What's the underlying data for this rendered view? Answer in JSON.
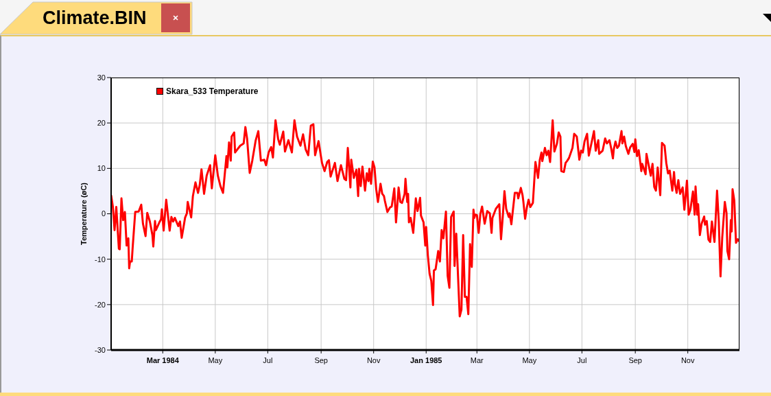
{
  "chart_data": {
    "type": "line",
    "title": "Climate.BIN",
    "ylabel": "Temperature (øC)",
    "xlim": [
      "1984-01-01",
      "1985-12-31"
    ],
    "xticks": [
      {
        "value": "1984-03-01",
        "label": "Mar 1984"
      },
      {
        "value": "1984-05-01",
        "label": "May"
      },
      {
        "value": "1984-07-01",
        "label": "Jul"
      },
      {
        "value": "1984-09-01",
        "label": "Sep"
      },
      {
        "value": "1984-11-01",
        "label": "Nov"
      },
      {
        "value": "1985-01-01",
        "label": "Jan 1985"
      },
      {
        "value": "1985-03-01",
        "label": "Mar"
      },
      {
        "value": "1985-05-01",
        "label": "May"
      },
      {
        "value": "1985-07-01",
        "label": "Jul"
      },
      {
        "value": "1985-09-01",
        "label": "Sep"
      },
      {
        "value": "1985-11-01",
        "label": "Nov"
      }
    ],
    "ylim": [
      -30,
      30
    ],
    "yticks": [
      -30,
      -20,
      -10,
      0,
      10,
      20,
      30
    ],
    "grid": true,
    "legend": "top left",
    "marker": "none",
    "line_style": "solid",
    "x": [
      "1984-01-01",
      "1984-01-03",
      "1984-01-05",
      "1984-01-07",
      "1984-01-10",
      "1984-01-11",
      "1984-01-13",
      "1984-01-15",
      "1984-01-17",
      "1984-01-19",
      "1984-01-21",
      "1984-01-22",
      "1984-01-23",
      "1984-01-25",
      "1984-01-26",
      "1984-01-29",
      "1984-02-02",
      "1984-02-05",
      "1984-02-07",
      "1984-02-10",
      "1984-02-12",
      "1984-02-15",
      "1984-02-18",
      "1984-02-19",
      "1984-02-21",
      "1984-02-22",
      "1984-02-26",
      "1984-02-28",
      "1984-02-29",
      "1984-03-02",
      "1984-03-05",
      "1984-03-09",
      "1984-03-11",
      "1984-03-13",
      "1984-03-15",
      "1984-03-19",
      "1984-03-21",
      "1984-03-23",
      "1984-03-27",
      "1984-03-29",
      "1984-03-30",
      "1984-04-03",
      "1984-04-05",
      "1984-04-08",
      "1984-04-11",
      "1984-04-13",
      "1984-04-15",
      "1984-04-18",
      "1984-04-21",
      "1984-04-25",
      "1984-04-27",
      "1984-05-01",
      "1984-05-04",
      "1984-05-07",
      "1984-05-10",
      "1984-05-14",
      "1984-05-15",
      "1984-05-17",
      "1984-05-19",
      "1984-05-20",
      "1984-05-23",
      "1984-05-24",
      "1984-05-30",
      "1984-06-03",
      "1984-06-05",
      "1984-06-07",
      "1984-06-10",
      "1984-06-13",
      "1984-06-17",
      "1984-06-20",
      "1984-06-23",
      "1984-06-27",
      "1984-06-29",
      "1984-07-02",
      "1984-07-05",
      "1984-07-07",
      "1984-07-10",
      "1984-07-13",
      "1984-07-15",
      "1984-07-19",
      "1984-07-21",
      "1984-07-25",
      "1984-07-29",
      "1984-08-01",
      "1984-08-04",
      "1984-08-08",
      "1984-08-11",
      "1984-08-14",
      "1984-08-17",
      "1984-08-20",
      "1984-08-23",
      "1984-08-25",
      "1984-08-29",
      "1984-09-02",
      "1984-09-05",
      "1984-09-08",
      "1984-09-10",
      "1984-09-12",
      "1984-09-17",
      "1984-09-20",
      "1984-09-24",
      "1984-09-28",
      "1984-09-30",
      "1984-10-02",
      "1984-10-05",
      "1984-10-06",
      "1984-10-09",
      "1984-10-12",
      "1984-10-14",
      "1984-10-15",
      "1984-10-17",
      "1984-10-19",
      "1984-10-22",
      "1984-10-24",
      "1984-10-26",
      "1984-10-27",
      "1984-10-29",
      "1984-10-31",
      "1984-11-02",
      "1984-11-04",
      "1984-11-06",
      "1984-11-09",
      "1984-11-11",
      "1984-11-13",
      "1984-11-14",
      "1984-11-17",
      "1984-11-20",
      "1984-11-22",
      "1984-11-25",
      "1984-11-27",
      "1984-11-30",
      "1984-12-02",
      "1984-12-04",
      "1984-12-07",
      "1984-12-08",
      "1984-12-10",
      "1984-12-11",
      "1984-12-12",
      "1984-12-14",
      "1984-12-17",
      "1984-12-20",
      "1984-12-22",
      "1984-12-25",
      "1984-12-26",
      "1984-12-29",
      "1984-12-31",
      "1985-01-01",
      "1985-01-03",
      "1985-01-05",
      "1985-01-07",
      "1985-01-09",
      "1985-01-10",
      "1985-01-12",
      "1985-01-15",
      "1985-01-17",
      "1985-01-19",
      "1985-01-21",
      "1985-01-24",
      "1985-01-26",
      "1985-01-28",
      "1985-01-30",
      "1985-02-02",
      "1985-02-03",
      "1985-02-05",
      "1985-02-09",
      "1985-02-11",
      "1985-02-13",
      "1985-02-15",
      "1985-02-17",
      "1985-02-19",
      "1985-02-21",
      "1985-02-23",
      "1985-02-25",
      "1985-02-26",
      "1985-02-27",
      "1985-03-01",
      "1985-03-03",
      "1985-03-05",
      "1985-03-07",
      "1985-03-10",
      "1985-03-13",
      "1985-03-16",
      "1985-03-18",
      "1985-03-19",
      "1985-03-23",
      "1985-03-27",
      "1985-03-29",
      "1985-03-31",
      "1985-04-02",
      "1985-04-04",
      "1985-04-07",
      "1985-04-08",
      "1985-04-10",
      "1985-04-14",
      "1985-04-17",
      "1985-04-18",
      "1985-04-21",
      "1985-04-23",
      "1985-04-24",
      "1985-04-26",
      "1985-04-28",
      "1985-04-30",
      "1985-05-02",
      "1985-05-05",
      "1985-05-08",
      "1985-05-11",
      "1985-05-13",
      "1985-05-15",
      "1985-05-16",
      "1985-05-19",
      "1985-05-21",
      "1985-05-23",
      "1985-05-25",
      "1985-05-28",
      "1985-05-30",
      "1985-06-02",
      "1985-06-04",
      "1985-06-06",
      "1985-06-07",
      "1985-06-10",
      "1985-06-12",
      "1985-06-14",
      "1985-06-16",
      "1985-06-20",
      "1985-06-22",
      "1985-06-25",
      "1985-06-28",
      "1985-06-30",
      "1985-07-02",
      "1985-07-04",
      "1985-07-07",
      "1985-07-09",
      "1985-07-12",
      "1985-07-15",
      "1985-07-17",
      "1985-07-20",
      "1985-07-21",
      "1985-07-25",
      "1985-07-28",
      "1985-07-30",
      "1985-08-02",
      "1985-08-04",
      "1985-08-06",
      "1985-08-07",
      "1985-08-09",
      "1985-08-11",
      "1985-08-13",
      "1985-08-16",
      "1985-08-17",
      "1985-08-19",
      "1985-08-21",
      "1985-08-24",
      "1985-08-26",
      "1985-08-29",
      "1985-08-31",
      "1985-09-01",
      "1985-09-03",
      "1985-09-05",
      "1985-09-08",
      "1985-09-09",
      "1985-09-11",
      "1985-09-13",
      "1985-09-14",
      "1985-09-16",
      "1985-09-19",
      "1985-09-21",
      "1985-09-23",
      "1985-09-25",
      "1985-09-27",
      "1985-09-30",
      "1985-10-02",
      "1985-10-05",
      "1985-10-07",
      "1985-10-09",
      "1985-10-11",
      "1985-10-14",
      "1985-10-16",
      "1985-10-17",
      "1985-10-19",
      "1985-10-21",
      "1985-10-23",
      "1985-10-26",
      "1985-10-28",
      "1985-10-31",
      "1985-11-02",
      "1985-11-04",
      "1985-11-07",
      "1985-11-09",
      "1985-11-10",
      "1985-11-12",
      "1985-11-13",
      "1985-11-15",
      "1985-11-17",
      "1985-11-20",
      "1985-11-21",
      "1985-11-23",
      "1985-11-25",
      "1985-11-27",
      "1985-11-29",
      "1985-12-02",
      "1985-12-05",
      "1985-12-07",
      "1985-12-09",
      "1985-12-11",
      "1985-12-14",
      "1985-12-16",
      "1985-12-17",
      "1985-12-19",
      "1985-12-21",
      "1985-12-22",
      "1985-12-23",
      "1985-12-25",
      "1985-12-27",
      "1985-12-29",
      "1985-12-31"
    ],
    "series": [
      {
        "name": "Skara_533 Temperature",
        "color": "#ff0000",
        "values": [
          4.1,
          1.6,
          -3.6,
          1.5,
          -7.7,
          -7.8,
          3.4,
          -1.4,
          0.4,
          -7.0,
          -5.4,
          -12.0,
          -10.5,
          -10.5,
          -7.5,
          0.4,
          0.5,
          2.0,
          -2.2,
          -4.9,
          0.2,
          -1.7,
          -4.7,
          -7.2,
          -1.6,
          -3.6,
          -1.9,
          -1.2,
          1.0,
          -3.7,
          3.1,
          -3.7,
          -0.7,
          -1.7,
          -0.9,
          -2.7,
          -1.7,
          -5.3,
          -0.8,
          0.1,
          2.6,
          -0.8,
          3.9,
          6.9,
          4.6,
          6.4,
          9.8,
          4.4,
          8.4,
          10.7,
          5.6,
          12.9,
          8.4,
          6.1,
          4.6,
          12.7,
          10.2,
          15.7,
          11.7,
          17.0,
          17.9,
          13.5,
          15.0,
          15.5,
          19.1,
          16.5,
          9.0,
          11.7,
          16.2,
          18.2,
          11.7,
          11.9,
          10.7,
          13.5,
          14.7,
          12.4,
          20.6,
          16.5,
          15.2,
          18.1,
          13.7,
          16.2,
          13.5,
          20.6,
          17.0,
          15.0,
          17.5,
          14.2,
          12.9,
          19.4,
          19.7,
          12.9,
          16.0,
          11.2,
          9.4,
          11.4,
          11.8,
          8.2,
          11.2,
          7.2,
          10.7,
          7.7,
          7.4,
          14.5,
          5.8,
          11.9,
          7.9,
          9.7,
          3.9,
          9.9,
          6.1,
          10.4,
          5.1,
          8.9,
          7.2,
          9.9,
          6.6,
          11.5,
          10.2,
          5.4,
          2.6,
          6.6,
          4.4,
          3.9,
          2.9,
          0.4,
          1.4,
          1.6,
          5.6,
          -1.9,
          5.8,
          2.6,
          2.4,
          4.4,
          7.7,
          2.6,
          4.4,
          -1.9,
          -0.9,
          -4.2,
          3.4,
          0.6,
          3.5,
          -0.4,
          -1.9,
          -7.0,
          -2.9,
          -9.2,
          -13.2,
          -14.8,
          -20.1,
          -12.5,
          -12.2,
          -8.2,
          -10.5,
          -3.6,
          -5.4,
          0.5,
          -13.7,
          -16.3,
          -0.7,
          0.5,
          -11.5,
          -4.4,
          -22.6,
          -21.1,
          -4.7,
          -18.3,
          -18.3,
          -22.1,
          -6.7,
          -11.7,
          0.9,
          -0.9,
          -0.2,
          -0.3,
          -4.2,
          0.0,
          1.6,
          -2.2,
          0.6,
          0.1,
          -4.2,
          -0.9,
          1.1,
          2.1,
          -5.6,
          -0.7,
          5.0,
          1.1,
          -0.7,
          0.1,
          -2.3,
          4.6,
          4.6,
          3.4,
          5.7,
          4.1,
          2.6,
          -1.1,
          1.4,
          3.1,
          1.5,
          2.4,
          11.4,
          7.9,
          11.8,
          13.5,
          11.6,
          14.5,
          12.9,
          13.9,
          11.4,
          20.6,
          13.7,
          15.5,
          17.9,
          17.0,
          9.4,
          9.2,
          11.2,
          11.7,
          12.3,
          14.5,
          17.6,
          17.0,
          11.9,
          13.9,
          13.5,
          15.9,
          17.6,
          12.8,
          15.5,
          18.2,
          13.9,
          16.2,
          13.2,
          13.9,
          16.6,
          15.5,
          16.2,
          14.4,
          12.2,
          14.2,
          15.9,
          14.5,
          15.0,
          18.2,
          15.5,
          17.0,
          14.9,
          13.2,
          14.6,
          15.4,
          13.6,
          16.4,
          12.7,
          14.0,
          9.4,
          11.0,
          9.9,
          8.7,
          13.2,
          11.2,
          8.4,
          11.0,
          5.9,
          5.1,
          10.2,
          4.1,
          15.6,
          15.0,
          11.2,
          8.9,
          9.5,
          5.1,
          9.2,
          6.6,
          4.6,
          7.4,
          4.4,
          5.8,
          0.9,
          7.3,
          -0.2,
          0.9,
          4.9,
          -0.2,
          6.0,
          -0.2,
          2.1,
          -4.7,
          -2.2,
          -0.6,
          -2.4,
          -1.6,
          -5.7,
          -6.2,
          -1.7,
          -6.2,
          5.1,
          -1.7,
          -13.8,
          -5.2,
          2.6,
          0.1,
          -8.2,
          -10.0,
          -1.4,
          -3.9,
          5.4,
          2.9,
          -6.4,
          -5.6,
          -6.1
        ]
      }
    ]
  }
}
